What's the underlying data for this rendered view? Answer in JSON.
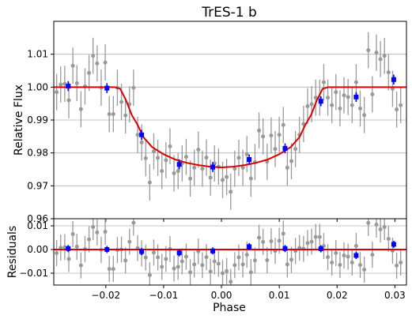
{
  "chart_data": {
    "type": "scatter",
    "title": "TrES-1 b",
    "xlabel": "Phase",
    "grid": true,
    "colors": {
      "raw": "#999999",
      "binned": "#0000ff",
      "model": "#dd0000",
      "grid": "#b0b0b0"
    },
    "xlim": [
      -0.029,
      0.032
    ],
    "xticks": [
      {
        "v": -0.02,
        "label": "−0.02"
      },
      {
        "v": -0.01,
        "label": "−0.01"
      },
      {
        "v": 0.0,
        "label": "0.00"
      },
      {
        "v": 0.01,
        "label": "0.01"
      },
      {
        "v": 0.02,
        "label": "0.02"
      },
      {
        "v": 0.03,
        "label": "0.03"
      }
    ],
    "top_panel": {
      "ylabel": "Relative Flux",
      "ylim": [
        0.96,
        1.02
      ],
      "yticks": [
        {
          "v": 0.96,
          "label": "0.96"
        },
        {
          "v": 0.97,
          "label": "0.97"
        },
        {
          "v": 0.98,
          "label": "0.98"
        },
        {
          "v": 0.99,
          "label": "0.99"
        },
        {
          "v": 1.0,
          "label": "1.00"
        },
        {
          "v": 1.01,
          "label": "1.01"
        }
      ],
      "model": {
        "x": [
          -0.029,
          -0.0185,
          -0.0175,
          -0.0165,
          -0.0155,
          -0.0145,
          -0.0135,
          -0.012,
          -0.01,
          -0.008,
          -0.006,
          -0.004,
          -0.002,
          0.0,
          0.002,
          0.004,
          0.006,
          0.008,
          0.01,
          0.012,
          0.0135,
          0.0145,
          0.0155,
          0.0165,
          0.0175,
          0.0185,
          0.032
        ],
        "y": [
          1.0,
          1.0,
          0.9995,
          0.996,
          0.9915,
          0.9885,
          0.9848,
          0.9818,
          0.9796,
          0.978,
          0.977,
          0.9763,
          0.9758,
          0.9756,
          0.9758,
          0.9763,
          0.977,
          0.978,
          0.9796,
          0.9818,
          0.9848,
          0.9885,
          0.9915,
          0.996,
          0.9995,
          1.0,
          1.0
        ]
      },
      "binned": {
        "x": [
          -0.0265,
          -0.0198,
          -0.0138,
          -0.0073,
          -0.0015,
          0.0048,
          0.011,
          0.0172,
          0.0233,
          0.0298
        ],
        "y": [
          1.0003,
          0.9997,
          0.9855,
          0.9765,
          0.9757,
          0.978,
          0.9814,
          0.9957,
          0.997,
          1.0023
        ],
        "err": [
          0.0015,
          0.0015,
          0.0015,
          0.0015,
          0.0015,
          0.0015,
          0.0015,
          0.0015,
          0.0015,
          0.0015
        ]
      },
      "raw": {
        "x": [
          -0.0285,
          -0.0278,
          -0.0271,
          -0.0264,
          -0.0257,
          -0.025,
          -0.0243,
          -0.0236,
          -0.0229,
          -0.0222,
          -0.0215,
          -0.0208,
          -0.0201,
          -0.0194,
          -0.0187,
          -0.018,
          -0.0173,
          -0.0166,
          -0.0159,
          -0.0152,
          -0.0145,
          -0.0138,
          -0.0131,
          -0.0124,
          -0.0117,
          -0.011,
          -0.0103,
          -0.0096,
          -0.0089,
          -0.0082,
          -0.0075,
          -0.0068,
          -0.0061,
          -0.0054,
          -0.0047,
          -0.004,
          -0.0033,
          -0.0026,
          -0.0019,
          -0.0012,
          -0.0005,
          0.0002,
          0.0009,
          0.0016,
          0.0023,
          0.003,
          0.0037,
          0.0044,
          0.0051,
          0.0058,
          0.0065,
          0.0072,
          0.0079,
          0.0086,
          0.0093,
          0.01,
          0.0107,
          0.0114,
          0.0121,
          0.0128,
          0.0135,
          0.0142,
          0.0149,
          0.0156,
          0.0163,
          0.017,
          0.0177,
          0.0184,
          0.0191,
          0.0198,
          0.0205,
          0.0212,
          0.0219,
          0.0226,
          0.0233,
          0.024,
          0.0247,
          0.0254,
          0.0261,
          0.0268,
          0.0275,
          0.0282,
          0.0289,
          0.0296,
          0.0303,
          0.031
        ],
        "y": [
          0.9985,
          1.0008,
          1.001,
          0.996,
          1.0065,
          1.0012,
          0.9933,
          1.0002,
          1.0043,
          1.0095,
          1.0072,
          0.9998,
          1.0075,
          0.9918,
          0.9918,
          0.9998,
          0.9955,
          0.9914,
          0.9948,
          0.9998,
          0.9855,
          0.9832,
          0.9784,
          0.971,
          0.9805,
          0.9785,
          0.9745,
          0.9778,
          0.982,
          0.9738,
          0.9745,
          0.9768,
          0.9788,
          0.9722,
          0.9755,
          0.981,
          0.9752,
          0.9786,
          0.9725,
          0.9768,
          0.9758,
          0.9718,
          0.9727,
          0.9682,
          0.9752,
          0.9785,
          0.9755,
          0.9796,
          0.9722,
          0.9772,
          0.9868,
          0.985,
          0.9773,
          0.9853,
          0.9812,
          0.9855,
          0.9885,
          0.9755,
          0.9775,
          0.9812,
          0.9855,
          0.9888,
          0.9942,
          0.9948,
          0.9968,
          0.9968,
          1.0015,
          0.9968,
          0.9945,
          0.9985,
          0.9935,
          0.9975,
          0.997,
          0.9945,
          1.0015,
          0.9935,
          0.9915,
          1.0112,
          0.9978,
          1.0105,
          1.0085,
          1.0095,
          1.0045,
          0.9995,
          0.9932,
          0.9945
        ],
        "err": 0.0055
      }
    },
    "bottom_panel": {
      "ylabel": "Residuals",
      "ylim": [
        -0.015,
        0.013
      ],
      "yticks": [
        {
          "v": -0.01,
          "label": "−0.01"
        },
        {
          "v": 0.0,
          "label": "0.00"
        },
        {
          "v": 0.01,
          "label": "0.01"
        }
      ],
      "model": {
        "x": [
          -0.029,
          0.032
        ],
        "y": [
          0.0,
          0.0
        ]
      },
      "binned": {
        "x": [
          -0.0265,
          -0.0198,
          -0.0138,
          -0.0073,
          -0.0015,
          0.0048,
          0.011,
          0.0172,
          0.0233,
          0.0298
        ],
        "y": [
          0.0004,
          0.0,
          -0.0008,
          -0.0014,
          -0.0006,
          0.0012,
          0.0004,
          0.0003,
          -0.0025,
          0.0022
        ],
        "err": [
          0.0015,
          0.0015,
          0.0015,
          0.0015,
          0.0015,
          0.0015,
          0.0015,
          0.0015,
          0.0015,
          0.0015
        ]
      },
      "raw": {
        "x": [
          -0.0285,
          -0.0278,
          -0.0271,
          -0.0264,
          -0.0257,
          -0.025,
          -0.0243,
          -0.0236,
          -0.0229,
          -0.0222,
          -0.0215,
          -0.0208,
          -0.0201,
          -0.0194,
          -0.0187,
          -0.018,
          -0.0173,
          -0.0166,
          -0.0159,
          -0.0152,
          -0.0145,
          -0.0138,
          -0.0131,
          -0.0124,
          -0.0117,
          -0.011,
          -0.0103,
          -0.0096,
          -0.0089,
          -0.0082,
          -0.0075,
          -0.0068,
          -0.0061,
          -0.0054,
          -0.0047,
          -0.004,
          -0.0033,
          -0.0026,
          -0.0019,
          -0.0012,
          -0.0005,
          0.0002,
          0.0009,
          0.0016,
          0.0023,
          0.003,
          0.0037,
          0.0044,
          0.0051,
          0.0058,
          0.0065,
          0.0072,
          0.0079,
          0.0086,
          0.0093,
          0.01,
          0.0107,
          0.0114,
          0.0121,
          0.0128,
          0.0135,
          0.0142,
          0.0149,
          0.0156,
          0.0163,
          0.017,
          0.0177,
          0.0184,
          0.0191,
          0.0198,
          0.0205,
          0.0212,
          0.0219,
          0.0226,
          0.0233,
          0.024,
          0.0247,
          0.0254,
          0.0261,
          0.0268,
          0.0275,
          0.0282,
          0.0289,
          0.0296,
          0.0303,
          0.031
        ],
        "y": [
          -0.0015,
          0.0008,
          0.001,
          -0.004,
          0.0065,
          0.0012,
          -0.0067,
          0.0002,
          0.0043,
          0.0095,
          0.0072,
          -0.0002,
          0.0075,
          -0.0082,
          -0.0082,
          -0.0002,
          0.0,
          -0.0046,
          0.0033,
          0.0113,
          0.0006,
          -0.0016,
          -0.0034,
          -0.0108,
          -0.0013,
          -0.0033,
          -0.0073,
          -0.004,
          0.0002,
          -0.008,
          -0.0073,
          -0.005,
          -0.003,
          -0.0096,
          -0.0063,
          -0.0008,
          -0.0066,
          -0.0032,
          -0.0093,
          -0.005,
          -0.006,
          -0.01,
          -0.0091,
          -0.0136,
          -0.0066,
          -0.0033,
          -0.0063,
          -0.0022,
          -0.0096,
          -0.0046,
          0.005,
          0.0032,
          -0.0045,
          0.0035,
          -0.0006,
          0.0037,
          0.0067,
          -0.0063,
          -0.0043,
          -0.0006,
          0.0007,
          0.0003,
          0.0027,
          0.0033,
          0.0053,
          0.0053,
          0.0015,
          -0.0032,
          -0.0055,
          -0.0015,
          -0.0065,
          -0.0025,
          -0.003,
          -0.0055,
          0.0015,
          -0.0065,
          -0.0085,
          0.0112,
          -0.0022,
          0.0105,
          0.0085,
          0.0095,
          0.0045,
          -0.0005,
          -0.0068,
          -0.0055
        ],
        "err": 0.0055
      }
    }
  }
}
